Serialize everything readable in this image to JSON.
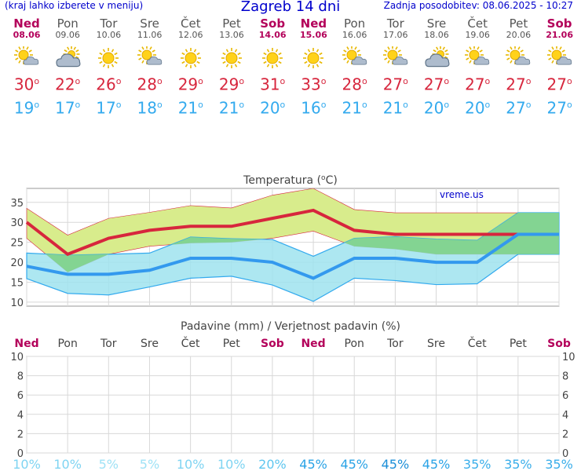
{
  "header": {
    "note": "(kraj lahko izberete v meniju)",
    "title": "Zagreb 14 dni",
    "updated": "Zadnja posodobitev: 08.06.2025 - 10:27"
  },
  "days": [
    {
      "name": "Ned",
      "date": "08.06",
      "weekend": true,
      "icon": "partly-cloudy-icon",
      "max": "30",
      "min": "19"
    },
    {
      "name": "Pon",
      "date": "09.06",
      "weekend": false,
      "icon": "cloudy-icon",
      "max": "22",
      "min": "17"
    },
    {
      "name": "Tor",
      "date": "10.06",
      "weekend": false,
      "icon": "sunny-icon",
      "max": "26",
      "min": "17"
    },
    {
      "name": "Sre",
      "date": "11.06",
      "weekend": false,
      "icon": "partly-cloudy-icon",
      "max": "28",
      "min": "18"
    },
    {
      "name": "Čet",
      "date": "12.06",
      "weekend": false,
      "icon": "sunny-icon",
      "max": "29",
      "min": "21"
    },
    {
      "name": "Pet",
      "date": "13.06",
      "weekend": false,
      "icon": "sunny-icon",
      "max": "29",
      "min": "21"
    },
    {
      "name": "Sob",
      "date": "14.06",
      "weekend": true,
      "icon": "sunny-icon",
      "max": "31",
      "min": "20"
    },
    {
      "name": "Ned",
      "date": "15.06",
      "weekend": true,
      "icon": "sunny-icon",
      "max": "33",
      "min": "16"
    },
    {
      "name": "Pon",
      "date": "16.06",
      "weekend": false,
      "icon": "partly-cloudy-icon",
      "max": "28",
      "min": "21"
    },
    {
      "name": "Tor",
      "date": "17.06",
      "weekend": false,
      "icon": "partly-cloudy-icon",
      "max": "27",
      "min": "21"
    },
    {
      "name": "Sre",
      "date": "18.06",
      "weekend": false,
      "icon": "cloudy-icon",
      "max": "27",
      "min": "20"
    },
    {
      "name": "Čet",
      "date": "19.06",
      "weekend": false,
      "icon": "partly-cloudy-icon",
      "max": "27",
      "min": "20"
    },
    {
      "name": "Pet",
      "date": "20.06",
      "weekend": false,
      "icon": "partly-cloudy-icon",
      "max": "27",
      "min": "27"
    },
    {
      "name": "Sob",
      "date": "21.06",
      "weekend": true,
      "icon": "partly-cloudy-icon",
      "max": "27",
      "min": "27"
    }
  ],
  "degree_sign": "o",
  "colors": {
    "max_line": "#d7263d",
    "min_line": "#3399ee",
    "max_band": "#d8ec8c",
    "min_band": "#9fe3ee",
    "overlap": "#7fd28a",
    "weekend": "#b3005a",
    "title": "#0000cc"
  },
  "chart_data": [
    {
      "type": "line",
      "title": "Temperatura (",
      "title_unit": "C)",
      "watermark": "vreme.us",
      "x": [
        1,
        2,
        3,
        4,
        5,
        6,
        7,
        8,
        9,
        10,
        11,
        12,
        13,
        14
      ],
      "yticks": [
        10,
        15,
        20,
        25,
        30,
        35
      ],
      "ylim": [
        9,
        38.5
      ],
      "grid": true,
      "series": [
        {
          "role": "max",
          "values": [
            30,
            22,
            26,
            28,
            29,
            29,
            31,
            33,
            28,
            27,
            27,
            27,
            27,
            27
          ]
        },
        {
          "role": "min",
          "values": [
            19,
            17,
            17,
            18,
            21,
            21,
            20,
            16,
            21,
            21,
            20,
            20,
            27,
            27
          ]
        },
        {
          "role": "max_upper",
          "values": [
            33.5,
            26.8,
            31,
            32.5,
            34.2,
            33.6,
            36.8,
            38.5,
            33.2,
            32.4,
            32.4,
            32.4,
            32.4,
            32.4
          ]
        },
        {
          "role": "max_lower",
          "values": [
            26,
            17.5,
            22,
            24,
            24.8,
            25,
            26,
            27.8,
            24,
            23.3,
            22,
            22,
            22,
            22
          ]
        },
        {
          "role": "min_upper",
          "values": [
            22.3,
            21.8,
            22,
            22.3,
            26.3,
            25.9,
            25.7,
            21.5,
            26,
            26.4,
            25.8,
            25.5,
            32.4,
            32.4
          ]
        },
        {
          "role": "min_lower",
          "values": [
            15.9,
            12.2,
            11.8,
            13.8,
            16,
            16.5,
            14.3,
            10.2,
            16,
            15.4,
            14.4,
            14.6,
            22,
            22
          ]
        }
      ]
    },
    {
      "type": "bar",
      "title": "Padavine (mm) / Verjetnost padavin (%)",
      "categories": [
        "Ned",
        "Pon",
        "Tor",
        "Sre",
        "Čet",
        "Pet",
        "Sob",
        "Ned",
        "Pon",
        "Tor",
        "Sre",
        "Čet",
        "Pet",
        "Sob"
      ],
      "weekend": [
        true,
        false,
        false,
        false,
        false,
        false,
        true,
        true,
        false,
        false,
        false,
        false,
        false,
        true
      ],
      "values": [
        0,
        0,
        0,
        0,
        0,
        0,
        0,
        0,
        0,
        0,
        0,
        0,
        0,
        0
      ],
      "probability": [
        "10%",
        "10%",
        "5%",
        "5%",
        "10%",
        "10%",
        "20%",
        "45%",
        "45%",
        "45%",
        "45%",
        "35%",
        "35%",
        "35%"
      ],
      "probability_colors": [
        "#7fd4f2",
        "#7fd4f2",
        "#9fe2f6",
        "#9fe2f6",
        "#7fd4f2",
        "#7fd4f2",
        "#5ec6ef",
        "#2aa3e6",
        "#2aa3e6",
        "#1c8fd8",
        "#2aa3e6",
        "#3aaeea",
        "#3aaeea",
        "#3aaeea"
      ],
      "yticks": [
        0,
        2,
        4,
        6,
        8,
        10
      ],
      "ylim": [
        0,
        10
      ],
      "grid": true
    }
  ]
}
